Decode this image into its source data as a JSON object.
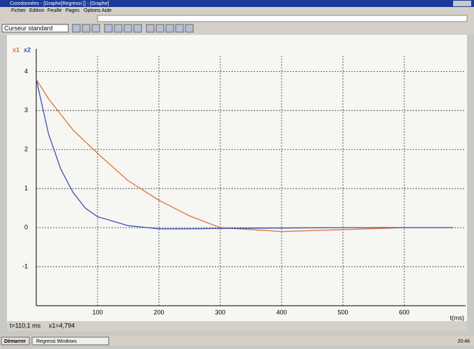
{
  "window": {
    "title": "Coordonnées - [Graphe]Regressi [] - [Graphe]",
    "menu": [
      "Fichier",
      "Edition",
      "Feuille",
      "Pages",
      "Options",
      "Aide"
    ]
  },
  "toolbar": {
    "cursor_mode": "Curseur standard"
  },
  "graph": {
    "type": "line",
    "x_label": "t(ms)",
    "x": [
      0,
      20,
      40,
      60,
      80,
      100,
      150,
      200,
      250,
      300,
      400,
      500,
      600,
      680
    ],
    "series": [
      {
        "name": "x1",
        "color": "#e0703c",
        "values": [
          3.8,
          3.3,
          2.9,
          2.5,
          2.2,
          1.9,
          1.2,
          0.7,
          0.3,
          0.0,
          -0.1,
          -0.05,
          0,
          0
        ]
      },
      {
        "name": "x2",
        "color": "#3c4fb0",
        "values": [
          3.8,
          2.4,
          1.5,
          0.9,
          0.5,
          0.28,
          0.05,
          -0.03,
          -0.03,
          -0.02,
          -0.01,
          0,
          0,
          0
        ]
      }
    ],
    "xlim": [
      0,
      700
    ],
    "xticks": [
      100,
      200,
      300,
      400,
      500,
      600
    ],
    "ylim": [
      -2,
      4.4
    ],
    "yticks": [
      -1,
      0,
      1,
      2,
      3,
      4
    ],
    "grid": true
  },
  "status": {
    "items": [
      "t=110,1 ms",
      "x1=4,794"
    ]
  },
  "taskbar": {
    "start": "Démarrer",
    "task": "Regressi Windows",
    "clock": "20:46"
  }
}
